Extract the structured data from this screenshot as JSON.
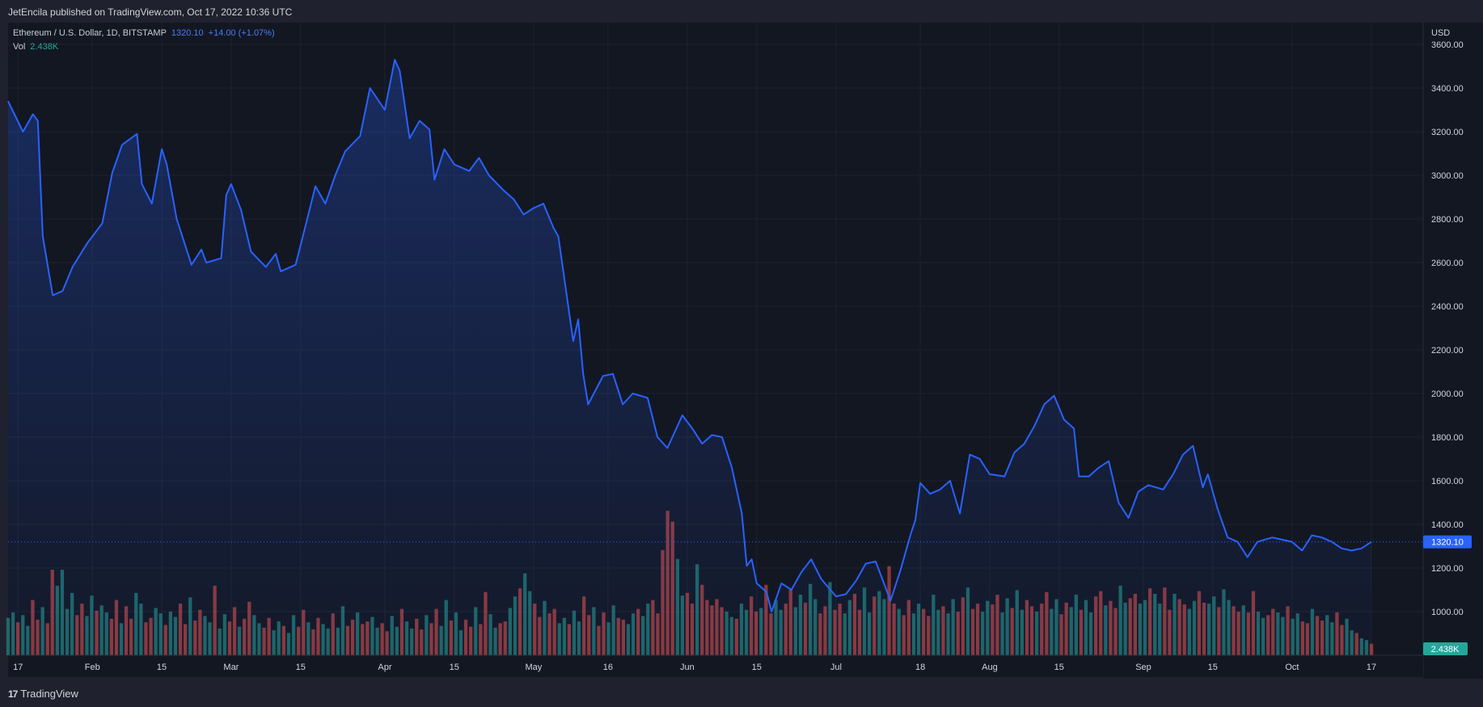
{
  "header": {
    "publisher": "JetEncila published on TradingView.com, Oct 17, 2022 10:36 UTC"
  },
  "legend": {
    "symbol": "Ethereum / U.S. Dollar, 1D, BITSTAMP",
    "last": "1320.10",
    "change": "+14.00 (+1.07%)",
    "vol_label": "Vol",
    "vol_value": "2.438K"
  },
  "footer": {
    "brand": "TradingView"
  },
  "colors": {
    "line": "#2962ff",
    "up": "#26a69a",
    "down": "#ef5350",
    "bg": "#131722"
  },
  "chart_data": {
    "type": "line",
    "currency": "USD",
    "y_range": [
      800,
      3700
    ],
    "y_ticks": [
      "3600.00",
      "3400.00",
      "3200.00",
      "3000.00",
      "2800.00",
      "2600.00",
      "2400.00",
      "2200.00",
      "2000.00",
      "1800.00",
      "1600.00",
      "1400.00",
      "1200.00",
      "1000.00"
    ],
    "x_labels": [
      "17",
      "Feb",
      "15",
      "Mar",
      "15",
      "Apr",
      "15",
      "May",
      "16",
      "Jun",
      "15",
      "Jul",
      "18",
      "Aug",
      "15",
      "Sep",
      "15",
      "Oct",
      "17"
    ],
    "last_price": 1320.1,
    "last_price_label": "1320.10",
    "last_volume_label": "2.438K",
    "price_anchors": [
      [
        "2022-01-15",
        3340
      ],
      [
        "2022-01-18",
        3200
      ],
      [
        "2022-01-20",
        3280
      ],
      [
        "2022-01-21",
        3250
      ],
      [
        "2022-01-22",
        2720
      ],
      [
        "2022-01-24",
        2450
      ],
      [
        "2022-01-26",
        2470
      ],
      [
        "2022-01-28",
        2580
      ],
      [
        "2022-01-31",
        2690
      ],
      [
        "2022-02-03",
        2780
      ],
      [
        "2022-02-05",
        3010
      ],
      [
        "2022-02-07",
        3140
      ],
      [
        "2022-02-10",
        3190
      ],
      [
        "2022-02-11",
        2960
      ],
      [
        "2022-02-13",
        2870
      ],
      [
        "2022-02-15",
        3120
      ],
      [
        "2022-02-16",
        3050
      ],
      [
        "2022-02-18",
        2800
      ],
      [
        "2022-02-21",
        2590
      ],
      [
        "2022-02-23",
        2660
      ],
      [
        "2022-02-24",
        2600
      ],
      [
        "2022-02-27",
        2620
      ],
      [
        "2022-02-28",
        2910
      ],
      [
        "2022-03-01",
        2960
      ],
      [
        "2022-03-03",
        2840
      ],
      [
        "2022-03-05",
        2650
      ],
      [
        "2022-03-08",
        2580
      ],
      [
        "2022-03-10",
        2640
      ],
      [
        "2022-03-11",
        2560
      ],
      [
        "2022-03-14",
        2590
      ],
      [
        "2022-03-16",
        2770
      ],
      [
        "2022-03-18",
        2950
      ],
      [
        "2022-03-20",
        2870
      ],
      [
        "2022-03-22",
        3000
      ],
      [
        "2022-03-24",
        3110
      ],
      [
        "2022-03-27",
        3180
      ],
      [
        "2022-03-29",
        3400
      ],
      [
        "2022-04-01",
        3300
      ],
      [
        "2022-04-03",
        3530
      ],
      [
        "2022-04-04",
        3480
      ],
      [
        "2022-04-06",
        3170
      ],
      [
        "2022-04-08",
        3250
      ],
      [
        "2022-04-10",
        3210
      ],
      [
        "2022-04-11",
        2980
      ],
      [
        "2022-04-13",
        3120
      ],
      [
        "2022-04-15",
        3050
      ],
      [
        "2022-04-18",
        3020
      ],
      [
        "2022-04-20",
        3080
      ],
      [
        "2022-04-22",
        3000
      ],
      [
        "2022-04-25",
        2930
      ],
      [
        "2022-04-27",
        2890
      ],
      [
        "2022-04-29",
        2820
      ],
      [
        "2022-05-01",
        2850
      ],
      [
        "2022-05-03",
        2870
      ],
      [
        "2022-05-05",
        2760
      ],
      [
        "2022-05-06",
        2720
      ],
      [
        "2022-05-09",
        2240
      ],
      [
        "2022-05-10",
        2340
      ],
      [
        "2022-05-11",
        2090
      ],
      [
        "2022-05-12",
        1950
      ],
      [
        "2022-05-15",
        2080
      ],
      [
        "2022-05-17",
        2090
      ],
      [
        "2022-05-19",
        1950
      ],
      [
        "2022-05-21",
        2000
      ],
      [
        "2022-05-24",
        1980
      ],
      [
        "2022-05-26",
        1800
      ],
      [
        "2022-05-28",
        1750
      ],
      [
        "2022-05-31",
        1900
      ],
      [
        "2022-06-02",
        1840
      ],
      [
        "2022-06-04",
        1770
      ],
      [
        "2022-06-06",
        1810
      ],
      [
        "2022-06-08",
        1800
      ],
      [
        "2022-06-10",
        1660
      ],
      [
        "2022-06-12",
        1450
      ],
      [
        "2022-06-13",
        1210
      ],
      [
        "2022-06-14",
        1240
      ],
      [
        "2022-06-15",
        1130
      ],
      [
        "2022-06-17",
        1090
      ],
      [
        "2022-06-18",
        1000
      ],
      [
        "2022-06-20",
        1130
      ],
      [
        "2022-06-22",
        1100
      ],
      [
        "2022-06-24",
        1180
      ],
      [
        "2022-06-26",
        1240
      ],
      [
        "2022-06-28",
        1150
      ],
      [
        "2022-07-01",
        1070
      ],
      [
        "2022-07-03",
        1080
      ],
      [
        "2022-07-05",
        1140
      ],
      [
        "2022-07-07",
        1220
      ],
      [
        "2022-07-09",
        1230
      ],
      [
        "2022-07-12",
        1050
      ],
      [
        "2022-07-14",
        1190
      ],
      [
        "2022-07-16",
        1350
      ],
      [
        "2022-07-17",
        1420
      ],
      [
        "2022-07-18",
        1590
      ],
      [
        "2022-07-20",
        1540
      ],
      [
        "2022-07-22",
        1560
      ],
      [
        "2022-07-24",
        1600
      ],
      [
        "2022-07-26",
        1450
      ],
      [
        "2022-07-28",
        1720
      ],
      [
        "2022-07-30",
        1700
      ],
      [
        "2022-08-01",
        1630
      ],
      [
        "2022-08-04",
        1620
      ],
      [
        "2022-08-06",
        1730
      ],
      [
        "2022-08-08",
        1770
      ],
      [
        "2022-08-10",
        1850
      ],
      [
        "2022-08-12",
        1950
      ],
      [
        "2022-08-14",
        1990
      ],
      [
        "2022-08-16",
        1880
      ],
      [
        "2022-08-18",
        1840
      ],
      [
        "2022-08-19",
        1620
      ],
      [
        "2022-08-21",
        1620
      ],
      [
        "2022-08-23",
        1660
      ],
      [
        "2022-08-25",
        1690
      ],
      [
        "2022-08-27",
        1500
      ],
      [
        "2022-08-29",
        1430
      ],
      [
        "2022-08-31",
        1550
      ],
      [
        "2022-09-02",
        1580
      ],
      [
        "2022-09-05",
        1560
      ],
      [
        "2022-09-07",
        1630
      ],
      [
        "2022-09-09",
        1720
      ],
      [
        "2022-09-11",
        1760
      ],
      [
        "2022-09-13",
        1570
      ],
      [
        "2022-09-14",
        1630
      ],
      [
        "2022-09-16",
        1470
      ],
      [
        "2022-09-18",
        1340
      ],
      [
        "2022-09-20",
        1320
      ],
      [
        "2022-09-22",
        1250
      ],
      [
        "2022-09-24",
        1320
      ],
      [
        "2022-09-27",
        1340
      ],
      [
        "2022-09-29",
        1330
      ],
      [
        "2022-10-01",
        1320
      ],
      [
        "2022-10-03",
        1280
      ],
      [
        "2022-10-05",
        1350
      ],
      [
        "2022-10-07",
        1340
      ],
      [
        "2022-10-09",
        1320
      ],
      [
        "2022-10-11",
        1290
      ],
      [
        "2022-10-13",
        1280
      ],
      [
        "2022-10-15",
        1290
      ],
      [
        "2022-10-17",
        1320
      ]
    ],
    "volume_range": [
      0,
      1.45
    ],
    "volume_bars": [
      0.42,
      0.48,
      0.37,
      0.45,
      0.33,
      0.62,
      0.4,
      0.54,
      0.36,
      0.96,
      0.78,
      0.96,
      0.52,
      0.7,
      0.45,
      0.58,
      0.44,
      0.67,
      0.5,
      0.56,
      0.48,
      0.41,
      0.62,
      0.36,
      0.55,
      0.41,
      0.7,
      0.58,
      0.37,
      0.42,
      0.53,
      0.47,
      0.34,
      0.49,
      0.43,
      0.58,
      0.35,
      0.65,
      0.39,
      0.51,
      0.44,
      0.37,
      0.78,
      0.3,
      0.46,
      0.38,
      0.54,
      0.32,
      0.41,
      0.6,
      0.45,
      0.36,
      0.31,
      0.42,
      0.28,
      0.38,
      0.33,
      0.25,
      0.45,
      0.32,
      0.51,
      0.37,
      0.29,
      0.42,
      0.35,
      0.3,
      0.47,
      0.31,
      0.55,
      0.33,
      0.4,
      0.48,
      0.35,
      0.38,
      0.43,
      0.31,
      0.36,
      0.27,
      0.44,
      0.32,
      0.52,
      0.38,
      0.3,
      0.41,
      0.29,
      0.45,
      0.36,
      0.52,
      0.33,
      0.62,
      0.39,
      0.48,
      0.28,
      0.4,
      0.32,
      0.54,
      0.35,
      0.71,
      0.46,
      0.31,
      0.36,
      0.38,
      0.53,
      0.66,
      0.75,
      0.92,
      0.72,
      0.58,
      0.43,
      0.61,
      0.47,
      0.52,
      0.36,
      0.42,
      0.35,
      0.5,
      0.38,
      0.66,
      0.45,
      0.54,
      0.33,
      0.48,
      0.37,
      0.56,
      0.42,
      0.4,
      0.35,
      0.47,
      0.52,
      0.44,
      0.58,
      0.62,
      0.47,
      1.18,
      1.62,
      1.5,
      1.08,
      0.67,
      0.7,
      0.58,
      1.02,
      0.79,
      0.62,
      0.56,
      0.63,
      0.54,
      0.49,
      0.43,
      0.41,
      0.58,
      0.51,
      0.66,
      0.49,
      0.53,
      0.79,
      0.47,
      0.62,
      0.51,
      0.58,
      0.75,
      0.54,
      0.68,
      0.59,
      0.8,
      0.63,
      0.47,
      0.55,
      0.82,
      0.51,
      0.58,
      0.47,
      0.62,
      0.69,
      0.51,
      0.76,
      0.48,
      0.66,
      0.72,
      0.63,
      1.0,
      0.58,
      0.52,
      0.45,
      0.62,
      0.47,
      0.58,
      0.52,
      0.44,
      0.68,
      0.51,
      0.55,
      0.47,
      0.63,
      0.49,
      0.65,
      0.76,
      0.52,
      0.58,
      0.49,
      0.61,
      0.57,
      0.68,
      0.48,
      0.64,
      0.53,
      0.73,
      0.51,
      0.62,
      0.55,
      0.49,
      0.58,
      0.71,
      0.52,
      0.63,
      0.46,
      0.59,
      0.54,
      0.68,
      0.51,
      0.62,
      0.48,
      0.66,
      0.72,
      0.56,
      0.61,
      0.53,
      0.78,
      0.59,
      0.64,
      0.69,
      0.58,
      0.62,
      0.75,
      0.69,
      0.58,
      0.76,
      0.51,
      0.69,
      0.63,
      0.57,
      0.52,
      0.61,
      0.72,
      0.59,
      0.58,
      0.66,
      0.54,
      0.74,
      0.62,
      0.55,
      0.49,
      0.56,
      0.48,
      0.72,
      0.49,
      0.42,
      0.45,
      0.52,
      0.48,
      0.43,
      0.55,
      0.41,
      0.47,
      0.38,
      0.36,
      0.52,
      0.44,
      0.39,
      0.45,
      0.37,
      0.48,
      0.34,
      0.41,
      0.28,
      0.25,
      0.19,
      0.17,
      0.13
    ],
    "volume_colors": "uuduuddudduuuudduuduuddudduudduuduuddudduuduuddudduudduuduuddudduuduuddudduudduuduuddudduuduuddudduudduuduuddudduuduuddudduudduuduuddddduudduddddduuduuddudduudduuduuddudduudduuduuddudduudduuduuddudduudduuduuddudduudduuduuddudduudduuduuddudduudduuduuddudduudduuduuddudduudduuduuddudduudduuuu"
  }
}
